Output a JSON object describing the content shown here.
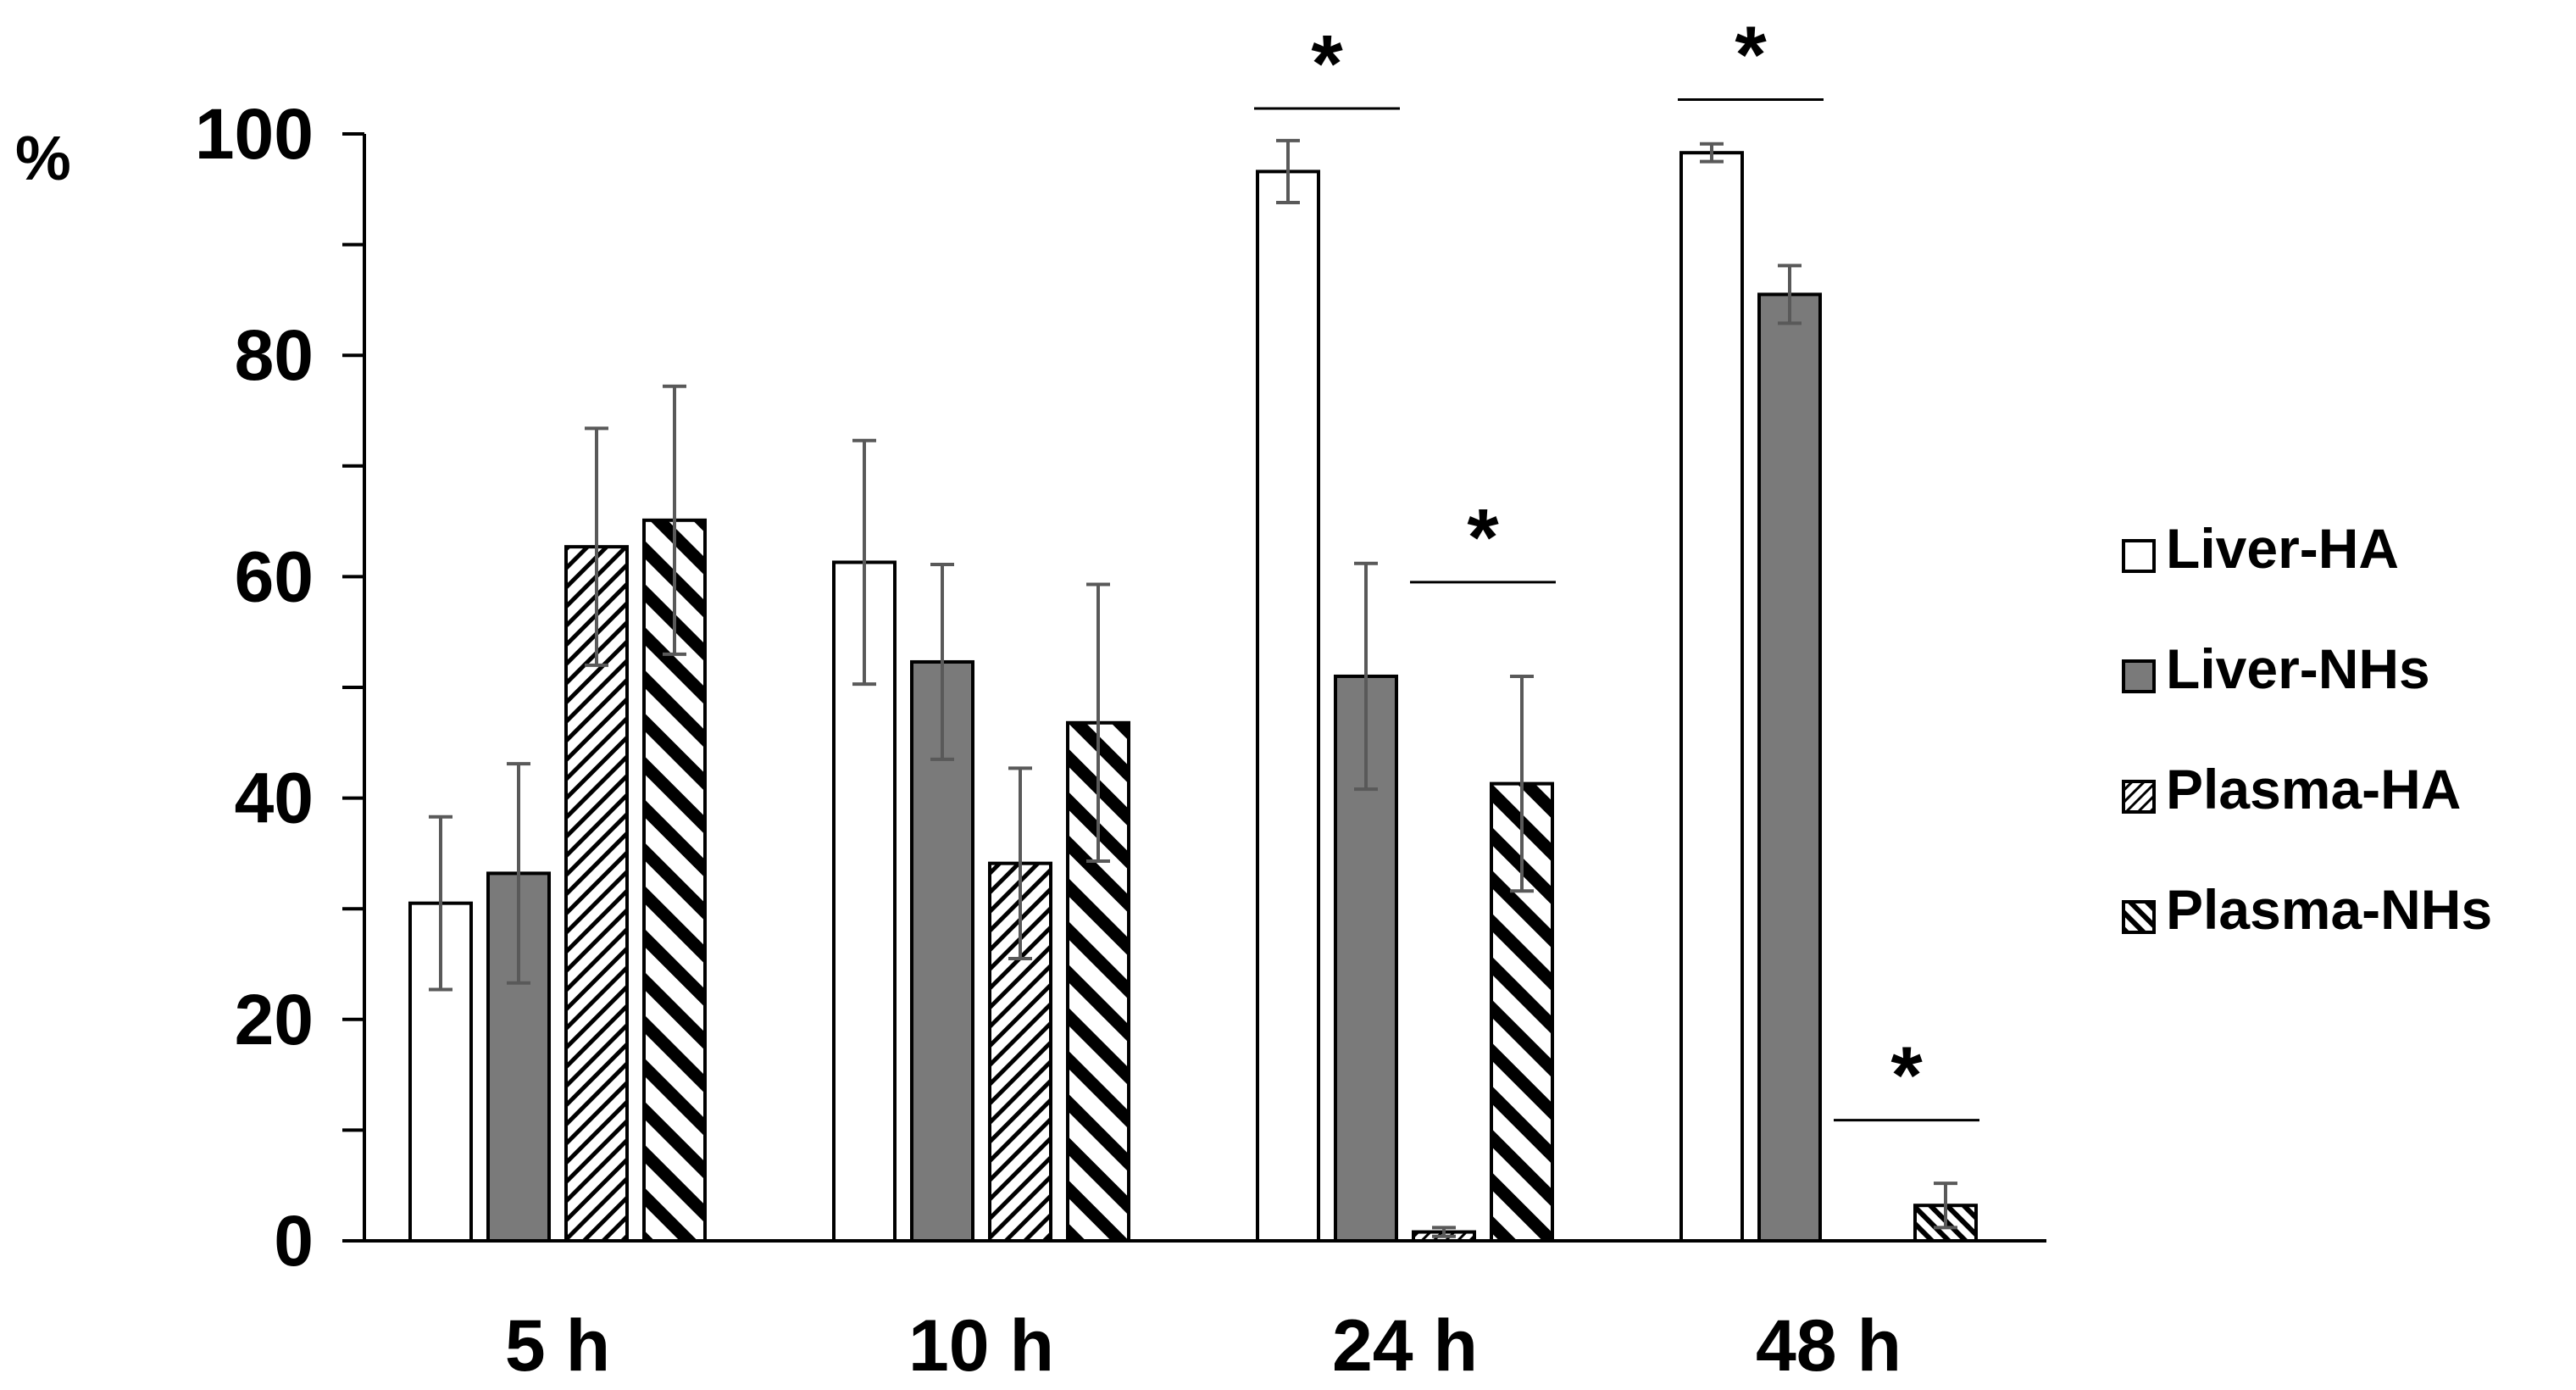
{
  "chart_data": {
    "type": "bar",
    "title": "",
    "xlabel": "",
    "ylabel": "%",
    "ylim": [
      0,
      100
    ],
    "yticks": [
      0,
      20,
      40,
      60,
      80,
      100
    ],
    "y_tick_labels": [
      "0",
      "20",
      "40",
      "60",
      "80",
      "100"
    ],
    "grid": false,
    "legend_position": "right",
    "categories": [
      "5 h",
      "10 h",
      "24 h",
      "48 h"
    ],
    "series": [
      {
        "name": "Liver-HA",
        "pattern": "white",
        "values": [
          30.5,
          61.3,
          96.6,
          98.3
        ],
        "errors": [
          7.8,
          11.0,
          2.8,
          0.8
        ]
      },
      {
        "name": "Liver-NHs",
        "pattern": "gray",
        "values": [
          33.2,
          52.3,
          51.0,
          85.5
        ],
        "errors": [
          9.9,
          8.8,
          10.2,
          2.6
        ]
      },
      {
        "name": "Plasma-HA",
        "pattern": "fine-diagonal",
        "values": [
          62.7,
          34.1,
          0.8,
          0
        ],
        "errors": [
          10.7,
          8.6,
          0.4,
          0
        ]
      },
      {
        "name": "Plasma-NHs",
        "pattern": "bold-diagonal",
        "values": [
          65.1,
          46.8,
          41.3,
          3.2
        ],
        "errors": [
          12.1,
          12.5,
          9.7,
          2.0
        ]
      }
    ],
    "significance": [
      {
        "label": "*",
        "category_index": 2,
        "from_series": 0,
        "to_series": 1,
        "line_y": 102.3
      },
      {
        "label": "*",
        "category_index": 2,
        "from_series": 2,
        "to_series": 3,
        "line_y": 59.5
      },
      {
        "label": "*",
        "category_index": 3,
        "from_series": 0,
        "to_series": 1,
        "line_y": 103.1
      },
      {
        "label": "*",
        "category_index": 3,
        "from_series": 2,
        "to_series": 3,
        "line_y": 10.9
      }
    ],
    "colors": {
      "outline": "#000000",
      "bar_white": "#ffffff",
      "bar_gray": "#7a7a7a",
      "error_bar": "#595959",
      "axis": "#000000"
    }
  }
}
